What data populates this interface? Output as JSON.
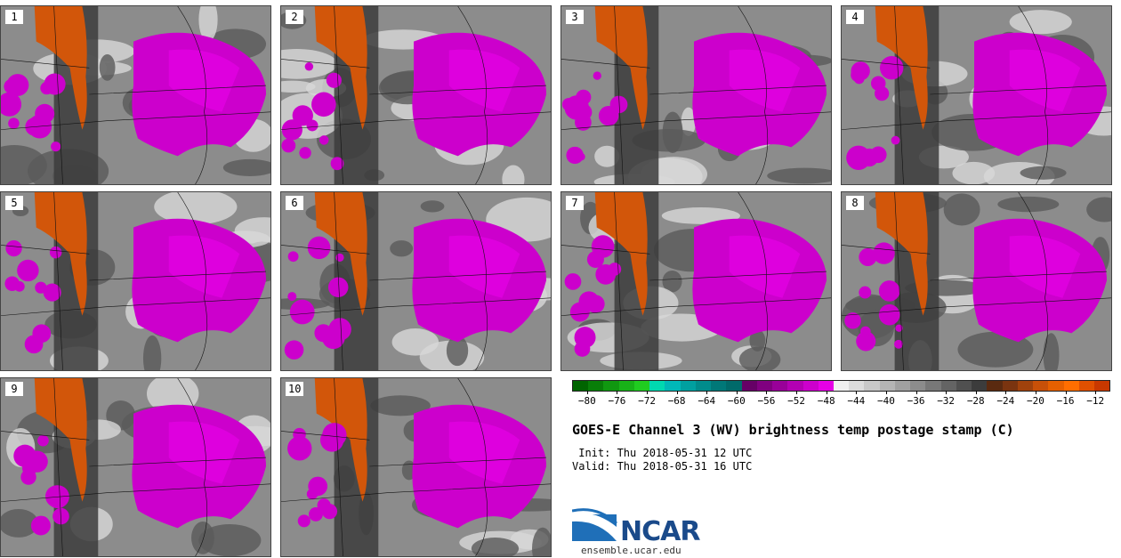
{
  "panels": [
    {
      "label": "1"
    },
    {
      "label": "2"
    },
    {
      "label": "3"
    },
    {
      "label": "4"
    },
    {
      "label": "5"
    },
    {
      "label": "6"
    },
    {
      "label": "7"
    },
    {
      "label": "8"
    },
    {
      "label": "9"
    },
    {
      "label": "10"
    }
  ],
  "colorbar": {
    "colors": [
      "#006400",
      "#087e08",
      "#109810",
      "#18b218",
      "#20cc20",
      "#00d8b0",
      "#00b8b8",
      "#00a0a0",
      "#008c8c",
      "#007878",
      "#006a6a",
      "#660066",
      "#800080",
      "#990099",
      "#b300b3",
      "#cc00cc",
      "#e600e6",
      "#f0f0f0",
      "#dcdcdc",
      "#c8c8c8",
      "#b4b4b4",
      "#a0a0a0",
      "#8c8c8c",
      "#787878",
      "#646464",
      "#505050",
      "#3c3c3c",
      "#5a2a10",
      "#7a3410",
      "#a0420c",
      "#c85008",
      "#e66000",
      "#ff6e00",
      "#e05000",
      "#c83800"
    ],
    "tick_labels": [
      "−80",
      "−76",
      "−72",
      "−68",
      "−64",
      "−60",
      "−56",
      "−52",
      "−48",
      "−44",
      "−40",
      "−36",
      "−32",
      "−28",
      "−24",
      "−20",
      "−16",
      "−12"
    ],
    "tick_values": [
      -80,
      -76,
      -72,
      -68,
      -64,
      -60,
      -56,
      -52,
      -48,
      -44,
      -40,
      -36,
      -32,
      -28,
      -24,
      -20,
      -16,
      -12
    ],
    "min": -82,
    "max": -10
  },
  "title": "GOES-E Channel 3 (WV) brightness temp postage stamp (C)",
  "init": " Init: Thu 2018-05-31 12 UTC",
  "valid": "Valid: Thu 2018-05-31 16 UTC",
  "logo": {
    "name": "NCAR",
    "url": "ensemble.ucar.edu"
  }
}
